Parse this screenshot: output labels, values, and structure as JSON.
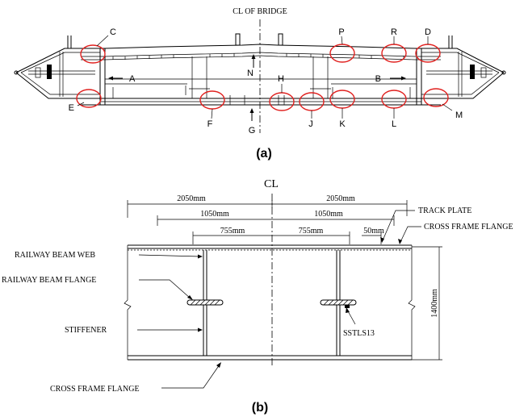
{
  "figure_a": {
    "title": "CL OF BRIDGE",
    "caption": "(a)",
    "labels": [
      "C",
      "P",
      "R",
      "D",
      "A",
      "N",
      "B",
      "H",
      "E",
      "F",
      "G",
      "J",
      "K",
      "L",
      "M"
    ]
  },
  "figure_b": {
    "caption": "(b)",
    "centerline": "CL",
    "dims": {
      "d1_left": "2050mm",
      "d1_right": "2050mm",
      "d2_left": "1050mm",
      "d2_right": "1050mm",
      "d3_left": "755mm",
      "d3_right": "755mm",
      "d4": "50mm",
      "height": "1400mm"
    },
    "callouts": {
      "track_plate": "TRACK PLATE",
      "cross_frame_flange_top": "CROSS FRAME FLANGE",
      "railway_beam_web": "RAILWAY BEAM WEB",
      "railway_beam_flange": "RAILWAY BEAM FLANGE",
      "stiffener": "STIFFENER",
      "sstls13": "SSTLS13",
      "cross_frame_flange_bottom": "CROSS FRAME FLANGE"
    }
  }
}
